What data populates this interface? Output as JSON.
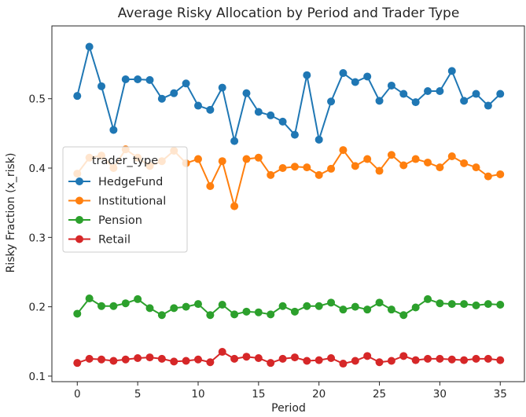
{
  "chart_data": {
    "type": "line",
    "title": "Average Risky Allocation by Period and Trader Type",
    "xlabel": "Period",
    "ylabel": "Risky Fraction (x_risk)",
    "xlim": [
      -2.1,
      37.0
    ],
    "ylim": [
      0.092,
      0.605
    ],
    "x_ticks": [
      0,
      5,
      10,
      15,
      20,
      25,
      30,
      35
    ],
    "y_ticks": [
      0.1,
      0.2,
      0.3,
      0.4,
      0.5
    ],
    "y_tick_labels": [
      "0.1",
      "0.2",
      "0.3",
      "0.4",
      "0.5"
    ],
    "grid": false,
    "legend": {
      "title": "trader_type",
      "placement": "center-left"
    },
    "x": [
      0,
      1,
      2,
      3,
      4,
      5,
      6,
      7,
      8,
      9,
      10,
      11,
      12,
      13,
      14,
      15,
      16,
      17,
      18,
      19,
      20,
      21,
      22,
      23,
      24,
      25,
      26,
      27,
      28,
      29,
      30,
      31,
      32,
      33,
      34,
      35
    ],
    "series": [
      {
        "name": "HedgeFund",
        "color": "#1f77b4",
        "values": [
          0.504,
          0.575,
          0.518,
          0.455,
          0.528,
          0.528,
          0.527,
          0.5,
          0.508,
          0.522,
          0.49,
          0.484,
          0.516,
          0.439,
          0.508,
          0.481,
          0.476,
          0.467,
          0.448,
          0.534,
          0.441,
          0.496,
          0.537,
          0.524,
          0.532,
          0.497,
          0.519,
          0.507,
          0.495,
          0.511,
          0.511,
          0.54,
          0.497,
          0.507,
          0.49,
          0.507
        ]
      },
      {
        "name": "Institutional",
        "color": "#ff7f0e",
        "values": [
          0.392,
          0.415,
          0.418,
          0.4,
          0.427,
          0.415,
          0.403,
          0.41,
          0.425,
          0.407,
          0.413,
          0.374,
          0.41,
          0.345,
          0.413,
          0.415,
          0.39,
          0.4,
          0.402,
          0.401,
          0.39,
          0.399,
          0.426,
          0.403,
          0.413,
          0.396,
          0.419,
          0.404,
          0.413,
          0.408,
          0.401,
          0.417,
          0.407,
          0.401,
          0.388,
          0.391
        ]
      },
      {
        "name": "Pension",
        "color": "#2ca02c",
        "values": [
          0.19,
          0.212,
          0.201,
          0.201,
          0.205,
          0.211,
          0.198,
          0.188,
          0.198,
          0.2,
          0.204,
          0.188,
          0.203,
          0.189,
          0.193,
          0.192,
          0.189,
          0.201,
          0.193,
          0.201,
          0.201,
          0.206,
          0.196,
          0.2,
          0.196,
          0.206,
          0.196,
          0.188,
          0.199,
          0.211,
          0.205,
          0.204,
          0.204,
          0.202,
          0.204,
          0.203
        ]
      },
      {
        "name": "Retail",
        "color": "#d62728",
        "values": [
          0.119,
          0.125,
          0.124,
          0.122,
          0.124,
          0.126,
          0.127,
          0.125,
          0.121,
          0.122,
          0.124,
          0.12,
          0.135,
          0.125,
          0.128,
          0.126,
          0.119,
          0.125,
          0.127,
          0.122,
          0.123,
          0.126,
          0.118,
          0.122,
          0.129,
          0.12,
          0.122,
          0.129,
          0.123,
          0.125,
          0.125,
          0.124,
          0.123,
          0.125,
          0.125,
          0.123
        ]
      }
    ]
  }
}
